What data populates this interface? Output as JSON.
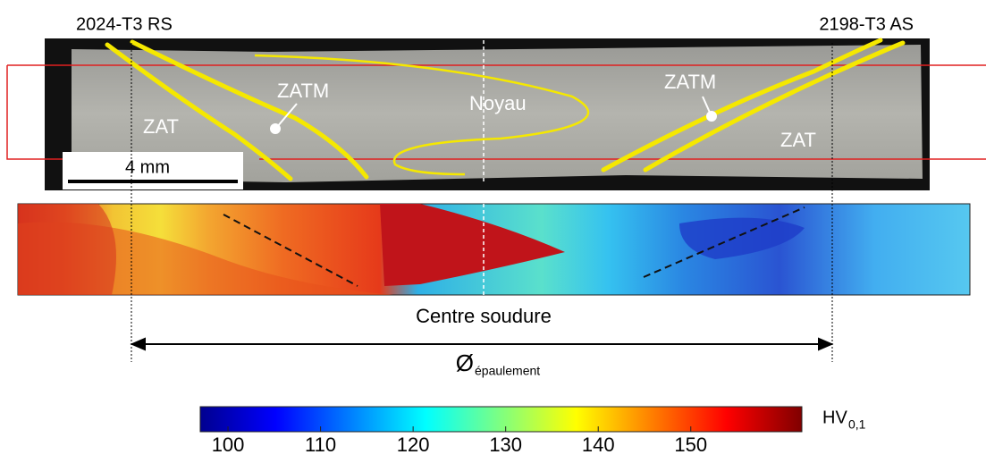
{
  "labels": {
    "left_material": "2024-T3 RS",
    "right_material": "2198-T3 AS"
  },
  "zones": {
    "zat_left": "ZAT",
    "zatm_left": "ZATM",
    "core": "Noyau",
    "zatm_right": "ZATM",
    "zat_right": "ZAT"
  },
  "scale_bar": "4 mm",
  "weld_center": "Centre soudure",
  "shoulder": {
    "symbol": "Ø",
    "subscript": "épaulement"
  },
  "colorbar": {
    "range": [
      97,
      162
    ],
    "ticks": [
      100,
      110,
      120,
      130,
      140,
      150
    ],
    "unit": "HV",
    "unit_subscript": "0,1"
  }
}
